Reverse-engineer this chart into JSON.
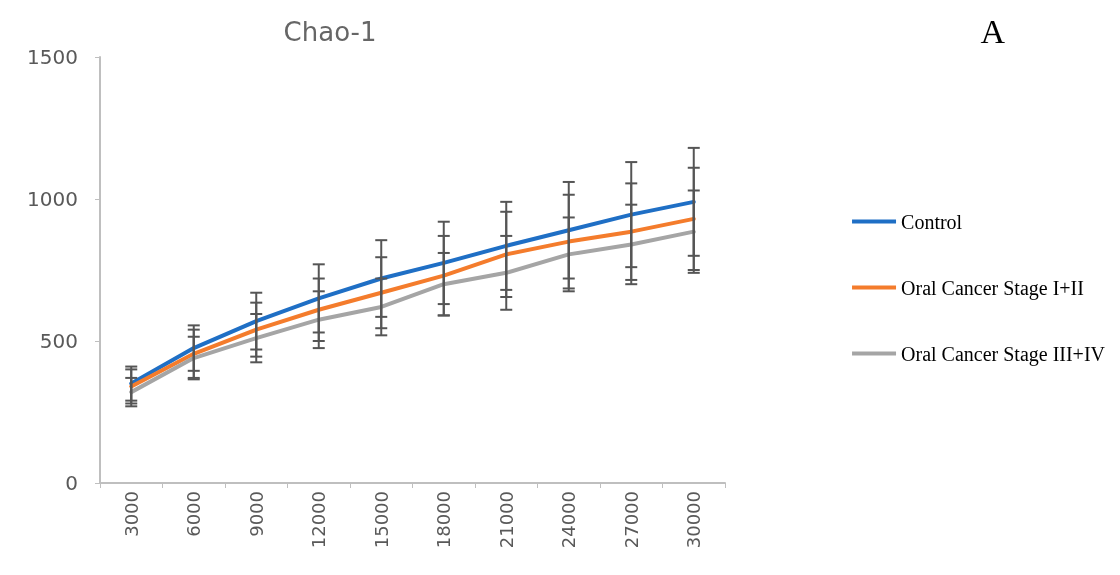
{
  "chart_data": {
    "type": "line",
    "title": "Chao-1",
    "annotations": [
      "A"
    ],
    "categories": [
      "3000",
      "6000",
      "9000",
      "12000",
      "15000",
      "18000",
      "21000",
      "24000",
      "27000",
      "30000"
    ],
    "ylim": [
      0,
      1500
    ],
    "yticks": [
      0,
      500,
      1000,
      1500
    ],
    "grid": false,
    "legend": "right",
    "marker": "none",
    "series": [
      {
        "name": "Control",
        "color": "#1f6fc5",
        "values": [
          350,
          475,
          570,
          650,
          720,
          775,
          835,
          890,
          945,
          990
        ],
        "errors": [
          60,
          80,
          100,
          120,
          135,
          145,
          155,
          170,
          185,
          190
        ]
      },
      {
        "name": "Oral Cancer Stage I+II",
        "color": "#f47c2c",
        "values": [
          340,
          455,
          540,
          610,
          670,
          730,
          805,
          850,
          885,
          930
        ],
        "errors": [
          60,
          85,
          95,
          110,
          125,
          140,
          150,
          165,
          170,
          180
        ]
      },
      {
        "name": "Oral Cancer Stage III+IV",
        "color": "#a5a5a5",
        "values": [
          320,
          440,
          510,
          575,
          620,
          700,
          740,
          805,
          840,
          885
        ],
        "errors": [
          50,
          75,
          85,
          100,
          100,
          110,
          130,
          130,
          140,
          145
        ]
      }
    ]
  }
}
